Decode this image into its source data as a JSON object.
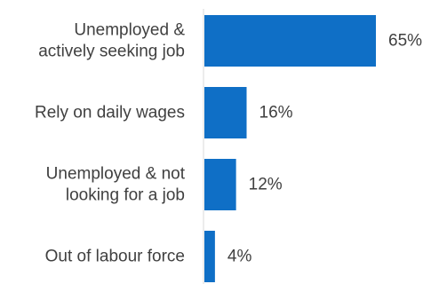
{
  "chart_data": {
    "type": "bar",
    "orientation": "horizontal",
    "title": "",
    "xlabel": "",
    "ylabel": "",
    "categories": [
      "Unemployed &\nactively seeking job",
      "Rely on daily wages",
      "Unemployed & not\nlooking for a job",
      "Out of labour force"
    ],
    "values": [
      65,
      16,
      12,
      4
    ],
    "value_labels": [
      "65%",
      "16%",
      "12%",
      "4%"
    ],
    "xlim": [
      0,
      65
    ],
    "grid": false,
    "legend": "none",
    "bar_color": "#0F6FC6",
    "axis_color": "#D9D9D9",
    "text_color": "#404040"
  }
}
